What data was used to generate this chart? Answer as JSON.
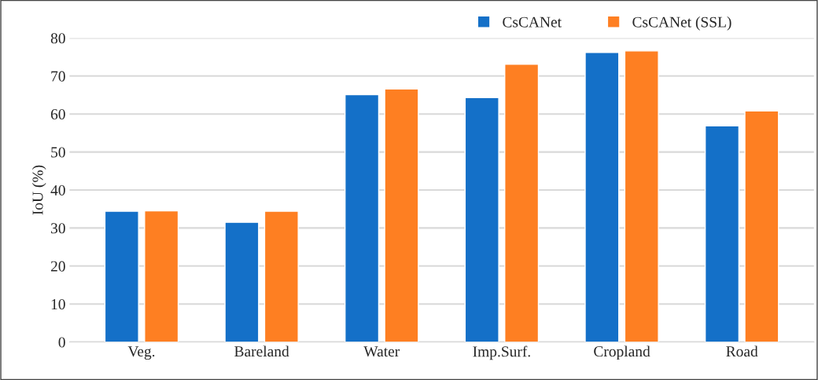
{
  "chart_data": {
    "type": "bar",
    "ylabel": "IoU (%)",
    "categories": [
      "Veg.",
      "Bareland",
      "Water",
      "Imp.Surf.",
      "Cropland",
      "Road"
    ],
    "series": [
      {
        "name": "CsCANet",
        "color": "#1470c8",
        "values": [
          34.4,
          31.5,
          65.1,
          64.3,
          76.2,
          56.9
        ]
      },
      {
        "name": "CsCANet (SSL)",
        "color": "#fe7f22",
        "values": [
          34.5,
          34.4,
          66.6,
          73.1,
          76.6,
          60.8
        ]
      }
    ],
    "ylim": [
      0,
      80
    ],
    "yticks": [
      0,
      10,
      20,
      30,
      40,
      50,
      60,
      70,
      80
    ],
    "grid": "y",
    "legend": "top right"
  }
}
